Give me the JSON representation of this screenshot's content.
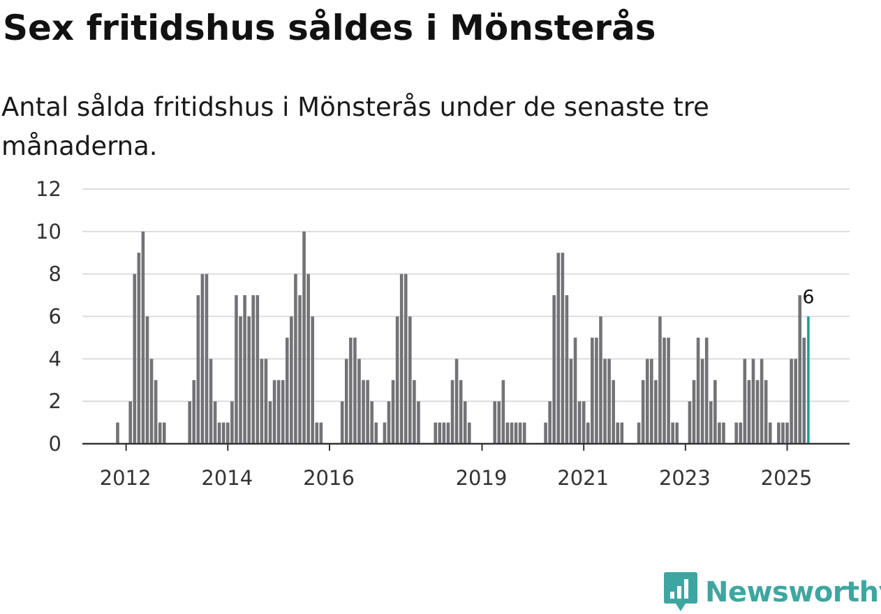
{
  "header": {
    "title": "Sex fritidshus såldes i Mönsterås",
    "subtitle": "Antal sålda fritidshus i Mönsterås under de senaste tre månaderna."
  },
  "branding": {
    "name": "Newsworthy",
    "color": "#3ea6a0"
  },
  "chart_data": {
    "type": "bar",
    "title": "Sex fritidshus såldes i Mönsterås",
    "subtitle": "Antal sålda fritidshus i Mönsterås under de senaste tre månaderna.",
    "xlabel": "",
    "ylabel": "",
    "ylim": [
      0,
      12
    ],
    "yticks": [
      "0",
      "2",
      "4",
      "6",
      "8",
      "10",
      "12"
    ],
    "grid": true,
    "series_color": "#737277",
    "highlight_color": "#179f93",
    "x_start": {
      "year": 2011,
      "month": 11
    },
    "xticks": [
      {
        "label": "2012",
        "year": 2012
      },
      {
        "label": "2014",
        "year": 2014
      },
      {
        "label": "2016",
        "year": 2016
      },
      {
        "label": "2019",
        "year": 2019
      },
      {
        "label": "2021",
        "year": 2021
      },
      {
        "label": "2023",
        "year": 2023
      },
      {
        "label": "2025",
        "year": 2025
      }
    ],
    "values": [
      1,
      0,
      0,
      2,
      8,
      9,
      10,
      6,
      4,
      3,
      1,
      1,
      0,
      0,
      0,
      0,
      0,
      2,
      3,
      7,
      8,
      8,
      4,
      2,
      1,
      1,
      1,
      2,
      7,
      6,
      7,
      6,
      7,
      7,
      4,
      4,
      2,
      3,
      3,
      3,
      5,
      6,
      8,
      7,
      10,
      8,
      6,
      1,
      1,
      0,
      0,
      0,
      0,
      2,
      4,
      5,
      5,
      4,
      3,
      3,
      2,
      1,
      0,
      1,
      2,
      3,
      6,
      8,
      8,
      6,
      3,
      2,
      0,
      0,
      0,
      1,
      1,
      1,
      1,
      3,
      4,
      3,
      2,
      1,
      0,
      0,
      0,
      0,
      0,
      2,
      2,
      3,
      1,
      1,
      1,
      1,
      1,
      0,
      0,
      0,
      0,
      1,
      2,
      7,
      9,
      9,
      7,
      4,
      5,
      2,
      2,
      1,
      5,
      5,
      6,
      4,
      4,
      3,
      1,
      1,
      0,
      0,
      0,
      1,
      3,
      4,
      4,
      3,
      6,
      5,
      5,
      1,
      1,
      0,
      0,
      2,
      3,
      5,
      4,
      5,
      2,
      3,
      1,
      1,
      0,
      0,
      1,
      1,
      4,
      3,
      4,
      3,
      4,
      3,
      1,
      0,
      1,
      1,
      1,
      4,
      4,
      7,
      5,
      6
    ],
    "last_value_label": "6"
  }
}
